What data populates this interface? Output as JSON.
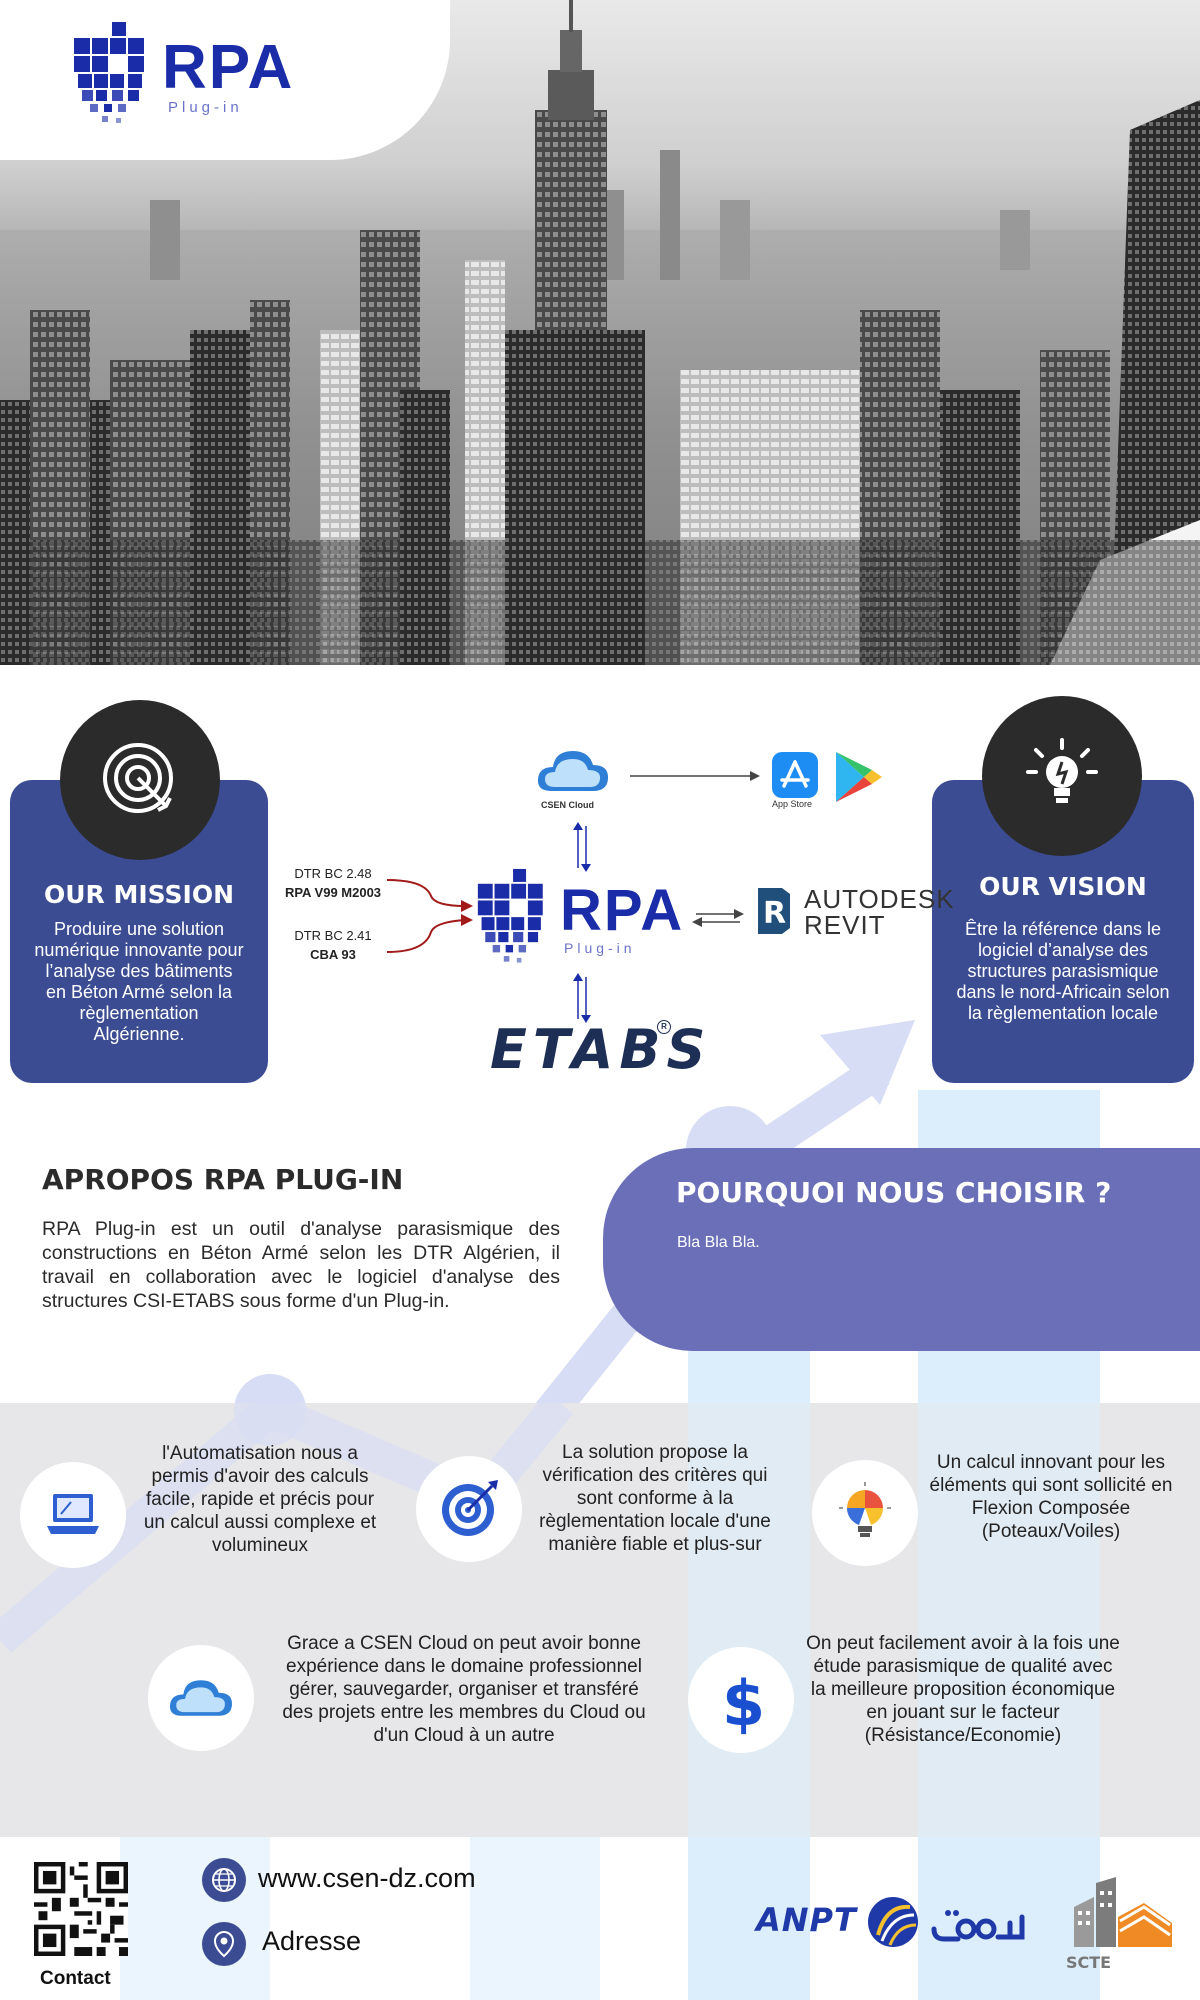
{
  "logo": {
    "name": "RPA",
    "tagline": "Plug-in"
  },
  "mission": {
    "title": "OUR MISSION",
    "text": "Produire une solution numérique innovante pour l’analyse des bâtiments en Béton Armé selon la règlementation Algérienne.",
    "icon": "target-icon"
  },
  "vision": {
    "title": "OUR VISION",
    "text": "Être la référence dans le logiciel d’analyse des structures parasismique dans le nord-Africain selon la règlementation locale",
    "icon": "lightbulb-icon"
  },
  "diagram": {
    "dtr1": {
      "label": "DTR BC 2.48",
      "code": "RPA V99 M2003"
    },
    "dtr2": {
      "label": "DTR BC 2.41",
      "code": "CBA 93"
    },
    "cloud_label": "CSEN Cloud",
    "store_label": "App Store",
    "revit": {
      "line1": "AUTODESK",
      "line2": "REVIT"
    },
    "etabs": "ETABS",
    "etabs_mark": "R"
  },
  "about": {
    "title": "APROPOS RPA PLUG-IN",
    "text": "RPA Plug-in est un outil d'analyse parasismique des constructions en Béton Armé selon les DTR Algérien, il travail en collaboration avec le logiciel d'analyse des structures CSI-ETABS sous forme d'un Plug-in."
  },
  "why": {
    "title": "POURQUOI NOUS CHOISIR ?",
    "text": "Bla Bla Bla."
  },
  "features": [
    {
      "icon": "laptop-icon",
      "text": "l'Automatisation nous a permis d'avoir des calculs facile, rapide et précis pour un calcul aussi complexe et volumineux"
    },
    {
      "icon": "target-icon",
      "text": "La solution propose la vérification des critères qui sont conforme à la règlementation locale d'une manière fiable et plus-sur"
    },
    {
      "icon": "lightbulb-icon",
      "text": "Un calcul innovant pour les éléments qui sont sollicité en Flexion Composée (Poteaux/Voiles)"
    },
    {
      "icon": "cloud-icon",
      "text": "Grace a CSEN Cloud on peut avoir bonne expérience dans le domaine professionnel gérer, sauvegarder, organiser et transféré des projets entre les membres du Cloud ou d'un Cloud à un autre"
    },
    {
      "icon": "dollar-icon",
      "text": "On peut facilement avoir à la fois une étude parasismique de qualité avec la meilleure proposition économique en jouant sur le facteur (Résistance/Economie)"
    }
  ],
  "footer": {
    "contact": "Contact",
    "website": "www.csen-dz.com",
    "address": "Adresse",
    "partner1": "ANPT",
    "partner2": "SCTE"
  }
}
